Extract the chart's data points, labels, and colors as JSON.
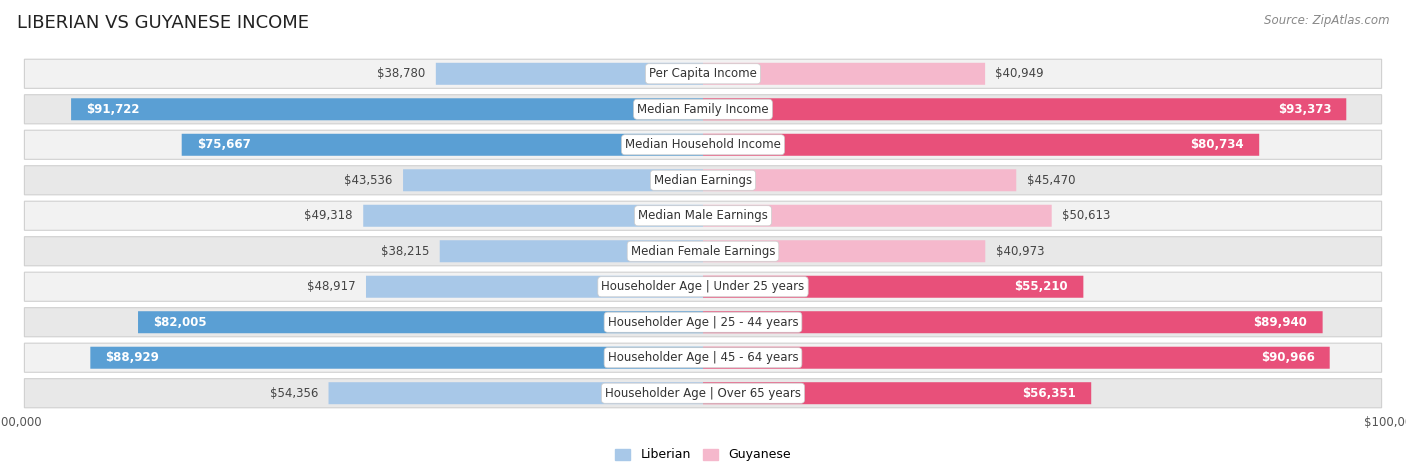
{
  "title": "LIBERIAN VS GUYANESE INCOME",
  "source": "Source: ZipAtlas.com",
  "categories": [
    "Per Capita Income",
    "Median Family Income",
    "Median Household Income",
    "Median Earnings",
    "Median Male Earnings",
    "Median Female Earnings",
    "Householder Age | Under 25 years",
    "Householder Age | 25 - 44 years",
    "Householder Age | 45 - 64 years",
    "Householder Age | Over 65 years"
  ],
  "liberian": [
    38780,
    91722,
    75667,
    43536,
    49318,
    38215,
    48917,
    82005,
    88929,
    54356
  ],
  "guyanese": [
    40949,
    93373,
    80734,
    45470,
    50613,
    40973,
    55210,
    89940,
    90966,
    56351
  ],
  "max_val": 100000,
  "liberian_light": "#a8c8e8",
  "liberian_dark": "#5a9fd4",
  "guyanese_light": "#f5b8cc",
  "guyanese_dark": "#e8507a",
  "row_bg_1": "#f2f2f2",
  "row_bg_2": "#e8e8e8",
  "bar_height": 0.62,
  "label_fontsize": 8.5,
  "value_fontsize": 8.5,
  "title_fontsize": 13,
  "axis_label_fontsize": 8.5,
  "lib_inside_threshold": 0.55,
  "guy_inside_threshold": 0.55
}
